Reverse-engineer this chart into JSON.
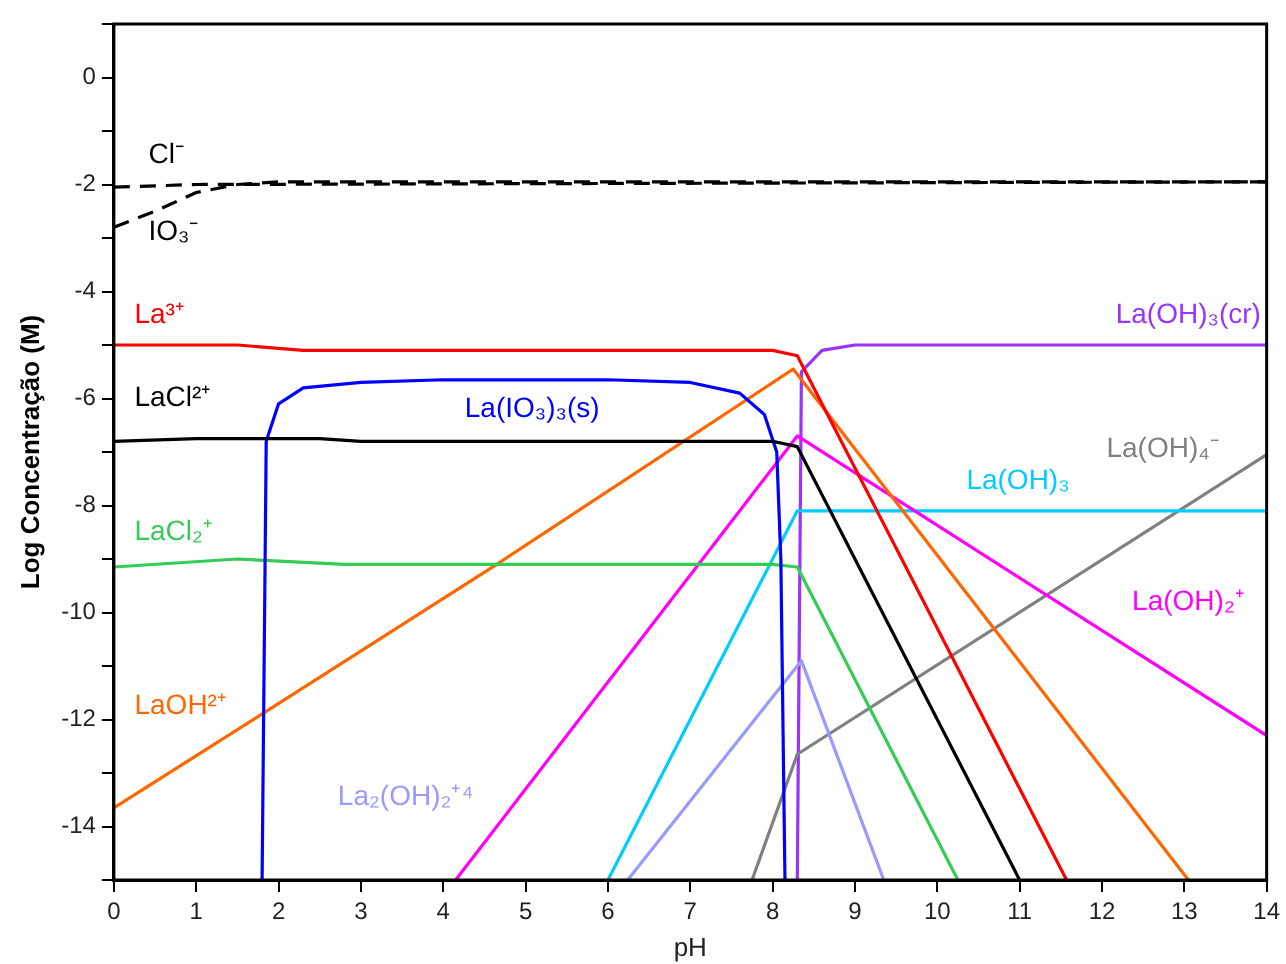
{
  "chart_data": {
    "type": "line",
    "xlabel": "pH",
    "ylabel": "Log Concentração (M)",
    "xlim": [
      0,
      14
    ],
    "ylim": [
      -15,
      1
    ],
    "xticks": [
      0,
      1,
      2,
      3,
      4,
      5,
      6,
      7,
      8,
      9,
      10,
      11,
      12,
      13,
      14
    ],
    "yticks": [
      {
        "value": -15,
        "label": null
      },
      -14,
      {
        "value": -13,
        "label": null
      },
      -12,
      {
        "value": -11,
        "label": null
      },
      -10,
      {
        "value": -9,
        "label": null
      },
      -8,
      {
        "value": -7,
        "label": null
      },
      -6,
      {
        "value": -5,
        "label": null
      },
      -4,
      {
        "value": -3,
        "label": null
      },
      -2,
      {
        "value": -1,
        "label": null
      },
      0,
      {
        "value": 1,
        "label": null
      }
    ],
    "grid": false,
    "legend": false,
    "marker": "none",
    "series": [
      {
        "name": "Cl⁻",
        "color": "#000000",
        "line_style": "dashed",
        "x": [
          0,
          1,
          14
        ],
        "values": [
          -2.05,
          -2.0,
          -1.95
        ]
      },
      {
        "name": "IO₃⁻",
        "color": "#000000",
        "line_style": "dashed",
        "x": [
          0,
          0.5,
          1,
          1.5,
          2,
          14
        ],
        "values": [
          -2.8,
          -2.5,
          -2.15,
          -2.0,
          -1.95,
          -1.95
        ]
      },
      {
        "name": "La³⁺",
        "color": "#ff0000",
        "x": [
          0,
          1.5,
          2.3,
          8.0,
          8.3,
          11.57
        ],
        "values": [
          -5.0,
          -5.0,
          -5.1,
          -5.1,
          -5.2,
          -15
        ]
      },
      {
        "name": "LaCl²⁺",
        "color": "#000000",
        "x": [
          0,
          1,
          2.5,
          3,
          8.0,
          8.3,
          11.0
        ],
        "values": [
          -6.8,
          -6.75,
          -6.75,
          -6.8,
          -6.8,
          -6.9,
          -15
        ]
      },
      {
        "name": "La(IO₃)₃(s)",
        "color": "#0000ff",
        "x": [
          1.8,
          1.85,
          2.0,
          2.3,
          3,
          4,
          6,
          7,
          7.6,
          7.9,
          8.05,
          8.1,
          8.15
        ],
        "values": [
          -15,
          -6.8,
          -6.1,
          -5.8,
          -5.7,
          -5.65,
          -5.65,
          -5.7,
          -5.9,
          -6.3,
          -7,
          -9,
          -15
        ]
      },
      {
        "name": "LaCl₂⁺",
        "color": "#33cc55",
        "x": [
          0,
          1.5,
          2.8,
          8.0,
          8.3,
          10.25
        ],
        "values": [
          -9.15,
          -9.0,
          -9.1,
          -9.1,
          -9.15,
          -15
        ]
      },
      {
        "name": "LaOH²⁺",
        "color": "#ff6600",
        "x": [
          0,
          1.85,
          4.65,
          8.25,
          13.05
        ],
        "values": [
          -13.65,
          -11.85,
          -9.1,
          -5.45,
          -15
        ]
      },
      {
        "name": "La(OH)₂⁺",
        "color": "#ff00ff",
        "x": [
          4.15,
          8.3,
          14
        ],
        "values": [
          -15,
          -6.7,
          -12.3
        ]
      },
      {
        "name": "La(OH)₃",
        "color": "#00ccff",
        "x": [
          6.0,
          8.3,
          14
        ],
        "values": [
          -15,
          -8.1,
          -8.1
        ]
      },
      {
        "name": "La₂(OH)₂⁺⁴",
        "color": "#9999ff",
        "x": [
          6.24,
          8.35,
          9.35
        ],
        "values": [
          -15,
          -10.9,
          -15
        ]
      },
      {
        "name": "La(OH)₄⁻",
        "color": "#808080",
        "x": [
          7.75,
          8.3,
          14
        ],
        "values": [
          -15,
          -12.65,
          -7.05
        ]
      },
      {
        "name": "La(OH)₃(cr)",
        "color": "#9933ff",
        "x": [
          8.3,
          8.35,
          8.6,
          9,
          14
        ],
        "values": [
          -15,
          -5.5,
          -5.1,
          -5.0,
          -5.0
        ]
      }
    ]
  }
}
